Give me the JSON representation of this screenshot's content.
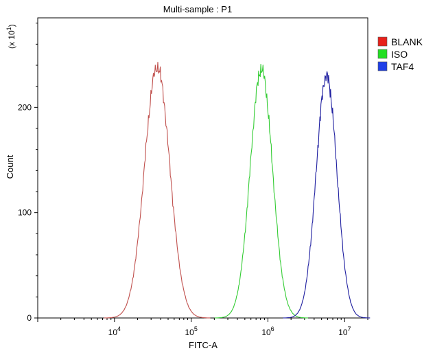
{
  "chart_data": {
    "type": "line",
    "title": "Multi-sample : P1",
    "xlabel": "FITC-A",
    "ylabel": "Count",
    "y_multiplier_label": "(x 10",
    "y_multiplier_exp": "1",
    "y_multiplier_close": ")",
    "x_scale": "log",
    "xlim": [
      1000,
      20000000
    ],
    "ylim": [
      0,
      285
    ],
    "x_ticks": [
      {
        "value": 10000,
        "base": "10",
        "exp": "4"
      },
      {
        "value": 100000,
        "base": "10",
        "exp": "5"
      },
      {
        "value": 1000000,
        "base": "10",
        "exp": "6"
      },
      {
        "value": 10000000,
        "base": "10",
        "exp": "7"
      }
    ],
    "y_ticks": [
      {
        "value": 0,
        "label": "0"
      },
      {
        "value": 100,
        "label": "100"
      },
      {
        "value": 200,
        "label": "200"
      }
    ],
    "grid": false,
    "legend_position": "top-right",
    "series": [
      {
        "name": "BLANK",
        "color": "#c0504d",
        "swatch": "#e8211b",
        "peak_x": 36000,
        "peak_y": 238,
        "width_log": 0.165
      },
      {
        "name": "ISO",
        "color": "#33cc33",
        "swatch": "#22e022",
        "peak_x": 820000,
        "peak_y": 236,
        "width_log": 0.145
      },
      {
        "name": "TAF4",
        "color": "#1f1fa0",
        "swatch": "#1f3fe8",
        "peak_x": 5800000,
        "peak_y": 230,
        "width_log": 0.135
      }
    ]
  }
}
